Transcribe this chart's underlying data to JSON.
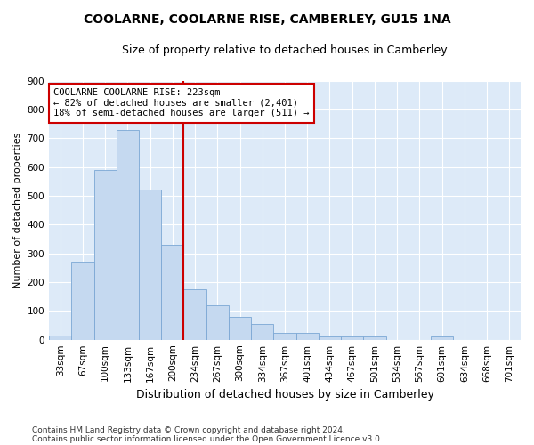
{
  "title1": "COOLARNE, COOLARNE RISE, CAMBERLEY, GU15 1NA",
  "title2": "Size of property relative to detached houses in Camberley",
  "xlabel": "Distribution of detached houses by size in Camberley",
  "ylabel": "Number of detached properties",
  "footnote1": "Contains HM Land Registry data © Crown copyright and database right 2024.",
  "footnote2": "Contains public sector information licensed under the Open Government Licence v3.0.",
  "categories": [
    "33sqm",
    "67sqm",
    "100sqm",
    "133sqm",
    "167sqm",
    "200sqm",
    "234sqm",
    "267sqm",
    "300sqm",
    "334sqm",
    "367sqm",
    "401sqm",
    "434sqm",
    "467sqm",
    "501sqm",
    "534sqm",
    "567sqm",
    "601sqm",
    "634sqm",
    "668sqm",
    "701sqm"
  ],
  "values": [
    15,
    270,
    590,
    730,
    520,
    330,
    175,
    120,
    80,
    55,
    25,
    25,
    12,
    12,
    12,
    0,
    0,
    12,
    0,
    0,
    0
  ],
  "bar_color": "#c5d9f0",
  "bar_edge_color": "#7ba7d4",
  "vline_x_index": 6,
  "vline_color": "#cc0000",
  "annotation_line1": "COOLARNE COOLARNE RISE: 223sqm",
  "annotation_line2": "← 82% of detached houses are smaller (2,401)",
  "annotation_line3": "18% of semi-detached houses are larger (511) →",
  "annotation_box_color": "#ffffff",
  "annotation_box_edge_color": "#cc0000",
  "ylim": [
    0,
    900
  ],
  "yticks": [
    0,
    100,
    200,
    300,
    400,
    500,
    600,
    700,
    800,
    900
  ],
  "bg_color": "#ffffff",
  "plot_bg_color": "#ddeaf8",
  "grid_color": "#ffffff",
  "title_fontsize": 10,
  "subtitle_fontsize": 9,
  "xlabel_fontsize": 9,
  "ylabel_fontsize": 8,
  "tick_fontsize": 7.5,
  "annotation_fontsize": 7.5,
  "footnote_fontsize": 6.5
}
